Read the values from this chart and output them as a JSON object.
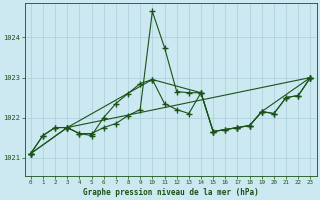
{
  "title": "Graphe pression niveau de la mer (hPa)",
  "bg_color": "#cce8f0",
  "grid_color": "#aacfdc",
  "line_color": "#1a5218",
  "xlim": [
    -0.5,
    23.5
  ],
  "ylim": [
    1020.55,
    1024.85
  ],
  "yticks": [
    1021,
    1022,
    1023,
    1024
  ],
  "xticks": [
    0,
    1,
    2,
    3,
    4,
    5,
    6,
    7,
    8,
    9,
    10,
    11,
    12,
    13,
    14,
    15,
    16,
    17,
    18,
    19,
    20,
    21,
    22,
    23
  ],
  "series1_x": [
    0,
    1,
    2,
    3,
    4,
    5,
    6,
    7,
    8,
    9,
    10,
    11,
    12,
    13,
    14,
    15,
    16,
    17,
    18,
    19,
    20,
    21,
    22,
    23
  ],
  "series1_y": [
    1021.1,
    1021.55,
    1021.75,
    1021.75,
    1021.6,
    1021.6,
    1021.75,
    1021.85,
    1022.05,
    1022.2,
    1024.65,
    1023.75,
    1022.65,
    1022.62,
    1022.62,
    1021.65,
    1021.7,
    1021.75,
    1021.8,
    1022.15,
    1022.1,
    1022.5,
    1022.55,
    1023.0
  ],
  "series2_x": [
    0,
    1,
    2,
    3,
    4,
    5,
    6,
    7,
    8,
    9,
    10,
    11,
    12,
    13,
    14,
    15,
    16,
    17,
    18,
    19,
    20,
    21,
    22,
    23
  ],
  "series2_y": [
    1021.1,
    1021.55,
    1021.75,
    1021.75,
    1021.6,
    1021.55,
    1022.0,
    1022.35,
    1022.6,
    1022.85,
    1022.95,
    1022.35,
    1022.2,
    1022.1,
    1022.62,
    1021.65,
    1021.7,
    1021.75,
    1021.8,
    1022.15,
    1022.1,
    1022.5,
    1022.55,
    1023.0
  ],
  "series3_x": [
    0,
    3,
    23
  ],
  "series3_y": [
    1021.1,
    1021.75,
    1023.0
  ],
  "series4_x": [
    0,
    3,
    10,
    14,
    15,
    17,
    18,
    19,
    23
  ],
  "series4_y": [
    1021.1,
    1021.75,
    1022.95,
    1022.62,
    1021.65,
    1021.75,
    1021.8,
    1022.15,
    1023.0
  ]
}
